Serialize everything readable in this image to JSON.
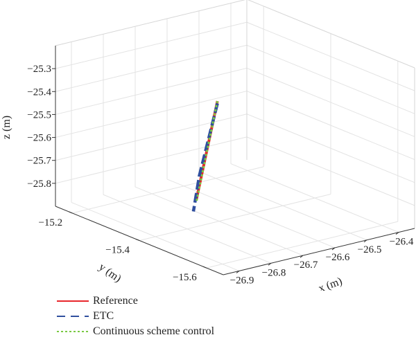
{
  "chart_data": {
    "type": "line",
    "subtype": "3d-line",
    "title": "",
    "xlabel": "x (m)",
    "ylabel": "y (m)",
    "zlabel": "z (m)",
    "xlim": [
      -26.95,
      -26.35
    ],
    "ylim": [
      -15.65,
      -15.15
    ],
    "zlim": [
      -25.9,
      -25.2
    ],
    "x_ticks": [
      -26.9,
      -26.8,
      -26.7,
      -26.6,
      -26.5,
      -26.4
    ],
    "x_tick_labels": [
      "−26.9",
      "−26.8",
      "−26.7",
      "−26.6",
      "−26.5",
      "−26.4"
    ],
    "y_ticks": [
      -15.2,
      -15.4,
      -15.6
    ],
    "y_tick_labels": [
      "−15.2",
      "−15.4",
      "−15.6"
    ],
    "z_ticks": [
      -25.3,
      -25.4,
      -25.5,
      -25.6,
      -25.7,
      -25.8
    ],
    "z_tick_labels": [
      "−25.3",
      "−25.4",
      "−25.5",
      "−25.6",
      "−25.7",
      "−25.8"
    ],
    "grid": true,
    "legend_position": "bottom-left",
    "series": [
      {
        "name": "Reference",
        "color": "#e8262b",
        "style": "solid",
        "x": [
          -26.6,
          -26.75
        ],
        "y": [
          -15.3,
          -15.38
        ],
        "z": [
          -25.47,
          -25.8
        ]
      },
      {
        "name": "ETC",
        "color": "#2f4f9e",
        "style": "dashed",
        "x": [
          -26.6,
          -26.66,
          -26.72,
          -26.77
        ],
        "y": [
          -15.3,
          -15.33,
          -15.36,
          -15.39
        ],
        "z": [
          -25.48,
          -25.6,
          -25.72,
          -25.84
        ]
      },
      {
        "name": "Continuous scheme control",
        "color": "#7ac943",
        "style": "dotted",
        "x": [
          -26.6,
          -26.75
        ],
        "y": [
          -15.3,
          -15.38
        ],
        "z": [
          -25.47,
          -25.81
        ]
      }
    ]
  }
}
